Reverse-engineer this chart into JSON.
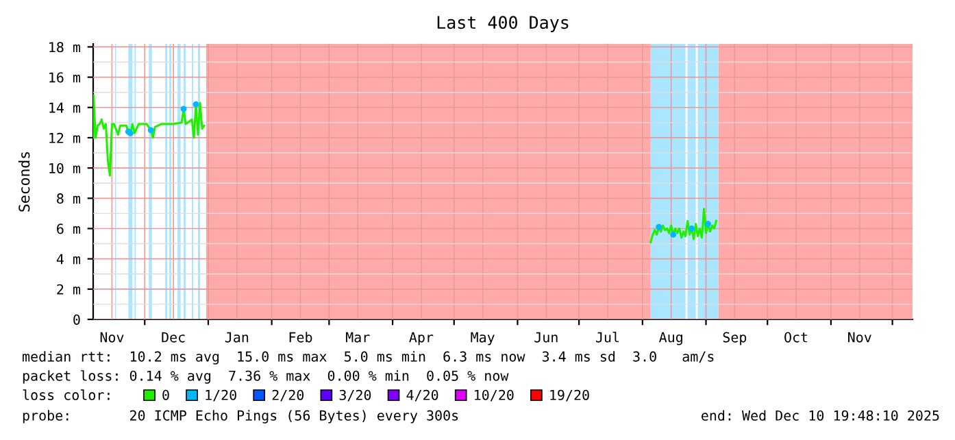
{
  "chart_data": {
    "type": "line",
    "title": "Last 400 Days",
    "ylabel": "Seconds",
    "legend_title": "loss color:",
    "legend": "bottom",
    "grid": true,
    "line_style": "solid",
    "xlim": [
      "2024-11-05T19:48",
      "2025-12-10T19:48"
    ],
    "xticks": [
      {
        "value": "2024-11-15",
        "label": "Nov"
      },
      {
        "value": "2024-12-01",
        "label": null
      },
      {
        "value": "2024-12-15",
        "label": "Dec"
      },
      {
        "value": "2025-01-01",
        "label": null
      },
      {
        "value": "2025-01-15",
        "label": "Jan"
      },
      {
        "value": "2025-02-01",
        "label": null
      },
      {
        "value": "2025-02-15",
        "label": "Feb"
      },
      {
        "value": "2025-03-01",
        "label": null
      },
      {
        "value": "2025-03-15",
        "label": "Mar"
      },
      {
        "value": "2025-04-01",
        "label": null
      },
      {
        "value": "2025-04-15",
        "label": "Apr"
      },
      {
        "value": "2025-05-01",
        "label": null
      },
      {
        "value": "2025-05-15",
        "label": "May"
      },
      {
        "value": "2025-06-01",
        "label": null
      },
      {
        "value": "2025-06-15",
        "label": "Jun"
      },
      {
        "value": "2025-07-01",
        "label": null
      },
      {
        "value": "2025-07-15",
        "label": "Jul"
      },
      {
        "value": "2025-08-01",
        "label": null
      },
      {
        "value": "2025-08-15",
        "label": "Aug"
      },
      {
        "value": "2025-09-01",
        "label": null
      },
      {
        "value": "2025-09-15",
        "label": "Sep"
      },
      {
        "value": "2025-10-01",
        "label": null
      },
      {
        "value": "2025-10-15",
        "label": "Oct"
      },
      {
        "value": "2025-11-01",
        "label": null
      },
      {
        "value": "2025-11-15",
        "label": "Nov"
      },
      {
        "value": "2025-12-01",
        "label": null
      }
    ],
    "ylim": [
      0,
      18.2
    ],
    "yticks": [
      0,
      {
        "value": 2,
        "label": "2 m"
      },
      {
        "value": 4,
        "label": "4 m"
      },
      {
        "value": 6,
        "label": "6 m"
      },
      {
        "value": 8,
        "label": "8 m"
      },
      {
        "value": 10,
        "label": "10 m"
      },
      {
        "value": 12,
        "label": "12 m"
      },
      {
        "value": 14,
        "label": "14 m"
      },
      {
        "value": 16,
        "label": "16 m"
      },
      {
        "value": 18,
        "label": "18 m"
      }
    ],
    "bands": [
      {
        "axis": "x",
        "from": "2024-12-31",
        "to": "2025-08-05",
        "label": null,
        "color": "#ffaaaa"
      },
      {
        "axis": "x",
        "from": "2025-09-07",
        "to": "2025-12-10T19:48",
        "label": null,
        "color": "#ffaaaa"
      },
      {
        "axis": "x",
        "from": "2024-11-16T12:00",
        "to": "2024-11-17",
        "label": null,
        "color": "#aae6ff"
      },
      {
        "axis": "x",
        "from": "2024-11-23",
        "to": "2024-11-25",
        "label": null,
        "color": "#aae6ff"
      },
      {
        "axis": "x",
        "from": "2024-11-26",
        "to": "2024-11-26T16:00",
        "label": null,
        "color": "#aae6ff"
      },
      {
        "axis": "x",
        "from": "2024-12-03",
        "to": "2024-12-04T12:00",
        "label": null,
        "color": "#aae6ff"
      },
      {
        "axis": "x",
        "from": "2024-12-11",
        "to": "2024-12-12",
        "label": null,
        "color": "#aae6ff"
      },
      {
        "axis": "x",
        "from": "2024-12-13",
        "to": "2024-12-14",
        "label": null,
        "color": "#aae6ff"
      },
      {
        "axis": "x",
        "from": "2024-12-17",
        "to": "2024-12-18T12:00",
        "label": null,
        "color": "#aae6ff"
      },
      {
        "axis": "x",
        "from": "2024-12-20",
        "to": "2024-12-21",
        "label": null,
        "color": "#aae6ff"
      },
      {
        "axis": "x",
        "from": "2024-12-24",
        "to": "2024-12-24T16:00",
        "label": null,
        "color": "#aae6ff"
      },
      {
        "axis": "x",
        "from": "2024-12-27",
        "to": "2024-12-28",
        "label": null,
        "color": "#aae6ff"
      },
      {
        "axis": "x",
        "from": "2025-08-05",
        "to": "2025-08-22",
        "label": null,
        "color": "#aae6ff"
      },
      {
        "axis": "x",
        "from": "2025-08-23",
        "to": "2025-08-27",
        "label": null,
        "color": "#aae6ff"
      },
      {
        "axis": "x",
        "from": "2025-08-28",
        "to": "2025-09-07",
        "label": null,
        "color": "#aae6ff"
      }
    ],
    "series": [
      {
        "name": "0",
        "color": "#20f000",
        "marker": "none",
        "x": [
          "2024-11-05T20:00",
          "2024-11-06",
          "2024-11-07",
          "2024-11-08",
          "2024-11-09",
          "2024-11-10",
          "2024-11-11",
          "2024-11-12",
          "2024-11-13",
          "2024-11-14",
          "2024-11-15",
          "2024-11-16",
          "2024-11-18",
          "2024-11-19",
          "2024-11-22",
          "2024-11-23",
          "2024-11-24",
          "2024-11-25",
          "2024-11-26",
          "2024-11-28",
          "2024-12-02",
          "2024-12-04",
          "2024-12-05",
          "2024-12-06",
          "2024-12-09",
          "2024-12-15",
          "2024-12-19",
          "2024-12-20",
          "2024-12-21",
          "2024-12-24",
          "2024-12-25",
          "2024-12-26",
          "2024-12-27",
          "2024-12-28",
          "2024-12-29",
          "2024-12-30",
          "2025-04-01",
          "2025-08-05",
          "2025-08-06",
          "2025-08-07",
          "2025-08-08",
          "2025-08-09",
          "2025-08-10",
          "2025-08-11",
          "2025-08-12",
          "2025-08-13",
          "2025-08-14",
          "2025-08-15",
          "2025-08-16",
          "2025-08-17",
          "2025-08-18",
          "2025-08-19",
          "2025-08-20",
          "2025-08-21",
          "2025-08-22",
          "2025-08-23",
          "2025-08-24",
          "2025-08-25",
          "2025-08-26",
          "2025-08-27",
          "2025-08-28",
          "2025-08-29",
          "2025-08-30",
          "2025-08-31",
          "2025-09-01",
          "2025-09-02",
          "2025-09-03",
          "2025-09-04",
          "2025-09-05",
          "2025-09-06"
        ],
        "values": [
          12.0,
          14.8,
          12.0,
          12.8,
          12.9,
          13.2,
          12.6,
          12.9,
          10.5,
          9.5,
          12.9,
          12.9,
          12.2,
          12.8,
          12.8,
          12.4,
          12.3,
          12.9,
          12.3,
          12.9,
          12.9,
          12.5,
          12.0,
          12.7,
          12.9,
          12.9,
          13.0,
          13.9,
          12.9,
          13.2,
          12.0,
          14.2,
          12.2,
          14.3,
          12.6,
          12.8,
          null,
          5.1,
          5.6,
          5.9,
          5.6,
          6.1,
          5.8,
          6.2,
          5.9,
          6.0,
          5.7,
          6.2,
          5.6,
          6.0,
          5.7,
          6.0,
          5.4,
          5.8,
          5.5,
          6.5,
          5.6,
          6.0,
          5.3,
          6.3,
          5.5,
          6.0,
          5.4,
          7.3,
          5.7,
          6.3,
          5.8,
          6.2,
          6.0,
          6.5
        ]
      },
      {
        "name": "1/20",
        "color": "#00b8ff",
        "type": "scatter",
        "marker": "circle",
        "x": [
          "2024-11-23",
          "2024-11-24",
          "2024-12-04",
          "2024-12-20",
          "2024-12-26",
          "2025-08-09",
          "2025-08-16",
          "2025-08-25",
          "2025-09-02"
        ],
        "values": [
          12.4,
          12.3,
          12.5,
          13.9,
          14.2,
          6.1,
          5.6,
          6.0,
          6.3
        ]
      },
      {
        "name": "2/20",
        "color": "#0059ff"
      },
      {
        "name": "3/20",
        "color": "#5e00ff"
      },
      {
        "name": "4/20",
        "color": "#7e00ff"
      },
      {
        "name": "10/20",
        "color": "#dd00ff"
      },
      {
        "name": "19/20",
        "color": "#ff0000"
      }
    ],
    "annotations": [
      "median rtt:  10.2 ms avg  15.0 ms max  5.0 ms min  6.3 ms now  3.4 ms sd  3.0   am/s",
      "packet loss: 0.14 % avg  7.36 % max  0.00 % min  0.05 % now",
      "probe:       20 ICMP Echo Pings (56 Bytes) every 300s",
      "end: Wed Dec 10 19:48:10 2025"
    ]
  }
}
